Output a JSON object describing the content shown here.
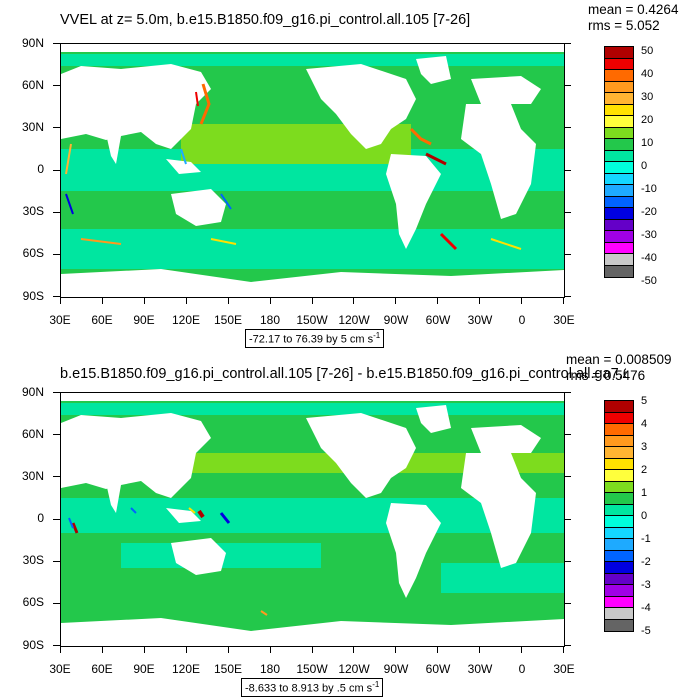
{
  "panel1": {
    "title": "VVEL at z=   5.0m, b.e15.B1850.f09_g16.pi_control.all.105 [7-26]",
    "mean": "mean = 0.4264",
    "rms": "rms = 5.052",
    "range_text": "-72.17 to 76.39 by 5 cm s",
    "range_sup": "-1",
    "colorbar_labels": [
      "50",
      "40",
      "30",
      "20",
      "10",
      "0",
      "-10",
      "-20",
      "-30",
      "-40",
      "-50"
    ]
  },
  "panel2": {
    "title": "b.e15.B1850.f09_g16.pi_control.all.105 [7-26] - b.e15.B1850.f09_g16.pi_control.all.ga7.66 [7-26]",
    "mean": "mean = 0.008509",
    "rms": "rms = 0.5476",
    "range_text": "-8.633 to 8.913 by .5 cm s",
    "range_sup": "-1",
    "colorbar_labels": [
      "5",
      "4",
      "3",
      "2",
      "1",
      "0",
      "-1",
      "-2",
      "-3",
      "-4",
      "-5"
    ]
  },
  "lat_labels": [
    "90N",
    "60N",
    "30N",
    "0",
    "30S",
    "60S",
    "90S"
  ],
  "lon_labels": [
    "30E",
    "60E",
    "90E",
    "120E",
    "150E",
    "180",
    "150W",
    "120W",
    "90W",
    "60W",
    "30W",
    "0",
    "30E"
  ],
  "colorbar_colors": [
    "#b00000",
    "#ee0000",
    "#ff6a00",
    "#ff9a1e",
    "#ffb432",
    "#ffe100",
    "#ffff3c",
    "#7ddc1e",
    "#23c84b",
    "#00e6a0",
    "#00ffdc",
    "#14d7ff",
    "#1eaaff",
    "#0064ff",
    "#0000e1",
    "#6400c8",
    "#a000e6",
    "#ff00ff",
    "#c8c8c8",
    "#646464"
  ]
}
